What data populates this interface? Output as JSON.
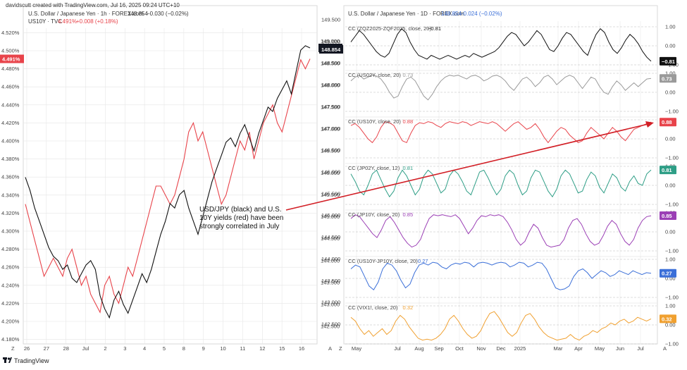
{
  "header": {
    "creator": "davidscutt created with TradingView.com, Jul 16, 2025 09:24 UTC+10"
  },
  "colors": {
    "usdjpy": "#111111",
    "us10y": "#e8434a",
    "grid": "#e6e6e6",
    "axis_bg": "#ffffff",
    "arrow": "#d21f26"
  },
  "chart_data": [
    {
      "type": "line",
      "id": "left-intraday",
      "legend_lines": [
        {
          "label": "U.S. Dollar / Japanese Yen · 1h · FOREX.com",
          "value": "148.854",
          "change": "−0.030 (−0.02%)"
        },
        {
          "label": "US10Y · TVC",
          "value": "4.491%",
          "change": "+0.008 (+0.18%)"
        }
      ],
      "x_ticks": [
        "26",
        "27",
        "28",
        "Jul",
        "2",
        "3",
        "4",
        "5",
        "8",
        "9",
        "10",
        "11",
        "12",
        "15",
        "16"
      ],
      "left_axis": {
        "series": "US10Y",
        "ylim": [
          4.175,
          4.525
        ],
        "ticks": [
          "4.520%",
          "4.500%",
          "4.480%",
          "4.460%",
          "4.440%",
          "4.420%",
          "4.400%",
          "4.380%",
          "4.360%",
          "4.340%",
          "4.320%",
          "4.300%",
          "4.280%",
          "4.260%",
          "4.240%",
          "4.220%",
          "4.200%",
          "4.180%"
        ],
        "last_badge": "4.491%"
      },
      "right_axis": {
        "series": "USDJPY",
        "ylim": [
          142.1,
          149.3
        ],
        "ticks": [
          "149.000",
          "148.500",
          "148.000",
          "147.500",
          "147.000",
          "146.500",
          "146.000",
          "145.500",
          "145.000",
          "144.500",
          "144.000",
          "143.500",
          "143.000",
          "142.500"
        ],
        "last_badge": "148.854"
      },
      "series": [
        {
          "name": "USD/JPY",
          "values": [
            145.9,
            145.6,
            145.2,
            144.9,
            144.6,
            144.3,
            144.1,
            144.0,
            143.8,
            143.9,
            143.6,
            143.5,
            143.7,
            143.9,
            144.0,
            143.8,
            143.2,
            142.9,
            142.7,
            143.1,
            143.3,
            143.0,
            142.8,
            143.1,
            143.4,
            143.7,
            143.5,
            143.8,
            144.2,
            144.6,
            144.9,
            145.3,
            145.2,
            145.5,
            145.6,
            145.2,
            144.9,
            144.6,
            145.0,
            145.4,
            145.8,
            146.1,
            146.4,
            146.7,
            146.8,
            146.6,
            146.9,
            147.1,
            146.8,
            146.5,
            146.9,
            147.2,
            147.5,
            147.4,
            147.7,
            147.9,
            148.1,
            147.8,
            148.3,
            148.8,
            148.9,
            148.85
          ]
        },
        {
          "name": "US10Y",
          "values": [
            4.33,
            4.31,
            4.29,
            4.27,
            4.25,
            4.26,
            4.27,
            4.26,
            4.25,
            4.27,
            4.28,
            4.26,
            4.24,
            4.25,
            4.23,
            4.22,
            4.21,
            4.24,
            4.25,
            4.23,
            4.22,
            4.24,
            4.26,
            4.25,
            4.27,
            4.29,
            4.31,
            4.33,
            4.35,
            4.35,
            4.34,
            4.33,
            4.34,
            4.36,
            4.38,
            4.41,
            4.42,
            4.4,
            4.41,
            4.39,
            4.37,
            4.35,
            4.33,
            4.34,
            4.36,
            4.38,
            4.4,
            4.39,
            4.41,
            4.38,
            4.4,
            4.42,
            4.43,
            4.44,
            4.42,
            4.41,
            4.43,
            4.45,
            4.47,
            4.49,
            4.48,
            4.491
          ]
        }
      ]
    },
    {
      "type": "line",
      "id": "right-daily",
      "legend_lines": [
        {
          "label": "U.S. Dollar / Japanese Yen · 1D · FOREX.com",
          "value": "148.854",
          "change": "−0.024 (−0.02%)"
        }
      ],
      "x_ticks": [
        "May",
        "Jul",
        "Aug",
        "Sep",
        "Oct",
        "Nov",
        "Dec",
        "2025",
        "Mar",
        "Apr",
        "May",
        "Jun",
        "Jul"
      ],
      "price_axis_ticks": [
        "149.500",
        "149.000",
        "148.500",
        "148.000",
        "147.500",
        "147.000",
        "146.500",
        "146.000",
        "145.500",
        "145.000",
        "144.500",
        "144.000",
        "143.500",
        "143.000",
        "142.500"
      ],
      "price_badge": "148.854",
      "panel_ticks": [
        "1.00",
        "0.00",
        "−1.00"
      ],
      "panels": [
        {
          "legend": "CC (ZQZ2025-ZQF2025, close, 20)",
          "last": "−0.81",
          "color": "#111111",
          "values": [
            0.2,
            0.5,
            0.8,
            0.6,
            0.3,
            0.0,
            -0.3,
            -0.5,
            -0.6,
            -0.4,
            0.1,
            0.6,
            0.9,
            0.7,
            0.2,
            -0.2,
            -0.5,
            -0.6,
            -0.7,
            -0.5,
            -0.6,
            -0.7,
            -0.6,
            -0.5,
            -0.6,
            -0.7,
            -0.6,
            -0.5,
            -0.6,
            -0.4,
            -0.5,
            -0.6,
            -0.5,
            -0.4,
            -0.3,
            -0.1,
            0.2,
            0.5,
            0.7,
            0.6,
            0.3,
            0.0,
            0.2,
            0.5,
            0.8,
            0.6,
            0.2,
            -0.2,
            -0.3,
            0.0,
            0.4,
            0.7,
            0.6,
            0.3,
            0.0,
            -0.3,
            -0.5,
            0.1,
            0.6,
            0.9,
            0.7,
            0.2,
            -0.2,
            -0.4,
            -0.1,
            0.3,
            0.6,
            0.4,
            0.1,
            -0.3,
            -0.6,
            -0.81
          ]
        },
        {
          "legend": "CC (US02Y, close, 20)",
          "last": "0.73",
          "color": "#9a9a9a",
          "values": [
            0.6,
            0.8,
            0.9,
            0.7,
            0.8,
            0.9,
            0.85,
            0.7,
            0.4,
            0.0,
            -0.3,
            -0.2,
            0.3,
            0.7,
            0.8,
            0.6,
            0.2,
            -0.2,
            -0.4,
            -0.1,
            0.3,
            0.6,
            0.8,
            0.9,
            0.85,
            0.9,
            0.8,
            0.7,
            0.85,
            0.9,
            0.8,
            0.6,
            0.7,
            0.85,
            0.9,
            0.8,
            0.6,
            0.3,
            0.1,
            0.4,
            0.7,
            0.8,
            0.6,
            0.3,
            0.5,
            0.8,
            0.9,
            0.7,
            0.4,
            0.6,
            0.8,
            0.9,
            0.8,
            0.5,
            0.2,
            0.5,
            0.8,
            0.7,
            0.3,
            0.0,
            -0.1,
            0.3,
            0.6,
            0.4,
            0.1,
            0.3,
            0.5,
            0.3,
            0.5,
            0.7,
            0.73
          ]
        },
        {
          "legend": "CC (US10Y, close, 20)",
          "last": "0.88",
          "color": "#e8434a",
          "values": [
            0.7,
            0.8,
            0.6,
            0.3,
            0.0,
            -0.2,
            0.1,
            0.6,
            0.9,
            0.85,
            0.7,
            0.3,
            -0.1,
            -0.2,
            0.3,
            0.7,
            0.85,
            0.8,
            0.9,
            0.85,
            0.7,
            0.6,
            0.8,
            0.9,
            0.85,
            0.8,
            0.9,
            0.85,
            0.7,
            0.8,
            0.9,
            0.85,
            0.8,
            0.9,
            0.8,
            0.6,
            0.4,
            0.6,
            0.8,
            0.9,
            0.7,
            0.5,
            0.6,
            0.8,
            0.5,
            0.1,
            -0.2,
            0.1,
            0.4,
            0.6,
            0.5,
            0.2,
            0.0,
            -0.2,
            -0.1,
            0.3,
            0.6,
            0.4,
            0.2,
            0.0,
            0.3,
            0.6,
            0.4,
            0.1,
            -0.1,
            0.2,
            0.5,
            0.6,
            0.7,
            0.8,
            0.88
          ]
        },
        {
          "legend": "CC (JP02Y, close, 12)",
          "last": "0.81",
          "color": "#2e9e86",
          "values": [
            0.6,
            0.2,
            -0.3,
            -0.5,
            0.0,
            0.6,
            0.8,
            0.3,
            -0.2,
            -0.6,
            -0.3,
            0.4,
            0.8,
            0.5,
            0.0,
            -0.5,
            -0.2,
            0.5,
            0.8,
            0.6,
            0.1,
            -0.4,
            -0.2,
            0.5,
            0.8,
            0.6,
            0.2,
            -0.3,
            -0.5,
            0.1,
            0.7,
            0.8,
            0.4,
            -0.1,
            -0.5,
            -0.2,
            0.5,
            0.8,
            0.6,
            0.0,
            -0.5,
            -0.3,
            0.4,
            0.8,
            0.7,
            0.2,
            -0.3,
            -0.6,
            -0.2,
            0.5,
            0.8,
            0.6,
            0.1,
            -0.4,
            -0.3,
            0.3,
            0.7,
            0.5,
            -0.1,
            -0.4,
            0.1,
            0.6,
            0.4,
            -0.1,
            -0.3,
            0.2,
            0.5,
            0.1,
            0.0,
            0.6,
            0.81
          ]
        },
        {
          "legend": "CC (JP10Y, close, 20)",
          "last": "0.85",
          "color": "#9b3fb5",
          "values": [
            0.7,
            0.9,
            0.8,
            0.5,
            0.2,
            -0.1,
            -0.3,
            0.1,
            0.6,
            0.8,
            0.5,
            0.1,
            -0.3,
            -0.6,
            -0.8,
            -0.7,
            -0.4,
            0.2,
            0.7,
            0.9,
            0.85,
            0.9,
            0.85,
            0.8,
            0.9,
            0.7,
            0.3,
            -0.1,
            0.2,
            0.6,
            0.85,
            0.8,
            0.9,
            0.85,
            0.9,
            0.8,
            0.5,
            0.1,
            -0.4,
            -0.7,
            -0.5,
            0.0,
            0.4,
            0.2,
            -0.3,
            -0.7,
            -0.8,
            -0.75,
            -0.7,
            -0.4,
            0.2,
            0.6,
            0.7,
            0.4,
            -0.1,
            -0.5,
            -0.7,
            -0.6,
            -0.2,
            0.3,
            0.6,
            0.4,
            -0.1,
            -0.5,
            -0.7,
            -0.4,
            0.2,
            0.6,
            0.8,
            0.85
          ]
        },
        {
          "legend": "CC (US10Y-JP10Y, close, 20)",
          "last": "0.27",
          "color": "#3b6fd8",
          "values": [
            0.5,
            0.7,
            0.6,
            0.1,
            -0.4,
            -0.6,
            -0.2,
            0.5,
            0.8,
            0.7,
            0.4,
            -0.1,
            -0.5,
            -0.3,
            0.3,
            0.7,
            0.8,
            0.7,
            0.85,
            0.8,
            0.6,
            0.5,
            0.7,
            0.8,
            0.75,
            0.85,
            0.8,
            0.6,
            0.8,
            0.85,
            0.8,
            0.7,
            0.8,
            0.85,
            0.8,
            0.6,
            0.7,
            0.85,
            0.8,
            0.6,
            0.7,
            0.85,
            0.8,
            0.5,
            0.0,
            -0.5,
            -0.6,
            -0.55,
            -0.4,
            0.1,
            0.4,
            0.5,
            0.3,
            0.0,
            0.2,
            0.4,
            0.3,
            0.1,
            0.2,
            0.4,
            0.3,
            0.2,
            0.4,
            0.3,
            0.2,
            0.3,
            0.27
          ]
        },
        {
          "legend": "CC (VIX1!, close, 20)",
          "last": "0.32",
          "color": "#f0a030",
          "values": [
            0.4,
            0.2,
            -0.2,
            -0.5,
            -0.3,
            -0.6,
            -0.4,
            -0.2,
            -0.5,
            -0.3,
            0.2,
            0.5,
            0.3,
            -0.1,
            -0.4,
            -0.7,
            -0.8,
            -0.75,
            -0.8,
            -0.7,
            -0.5,
            -0.2,
            0.3,
            0.5,
            0.2,
            -0.2,
            -0.5,
            -0.7,
            -0.6,
            -0.3,
            0.2,
            0.6,
            0.7,
            0.4,
            0.0,
            -0.4,
            -0.6,
            -0.4,
            0.1,
            0.5,
            0.6,
            0.3,
            -0.1,
            -0.4,
            -0.6,
            -0.7,
            -0.8,
            -0.75,
            -0.7,
            -0.5,
            -0.7,
            -0.8,
            -0.6,
            -0.5,
            -0.3,
            -0.4,
            -0.2,
            -0.1,
            0.1,
            0.0,
            0.2,
            0.3,
            0.1,
            0.2,
            0.4,
            0.3,
            0.2,
            0.32
          ]
        }
      ]
    }
  ],
  "annotation": {
    "lines": [
      "USD/JPY (black) and U.S.",
      "10Y yields (red) have been",
      "strongly correlated in July"
    ]
  },
  "footer": {
    "brand": "TradingView",
    "logo": "tradingview-logo"
  }
}
